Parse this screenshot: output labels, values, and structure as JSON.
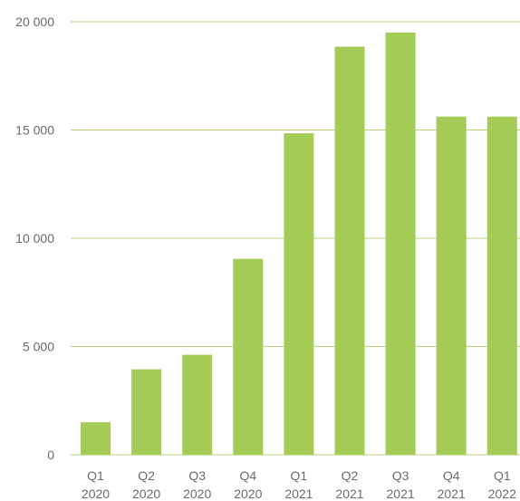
{
  "chart_data": {
    "type": "bar",
    "categories": [
      [
        "Q1",
        "2020"
      ],
      [
        "Q2",
        "2020"
      ],
      [
        "Q3",
        "2020"
      ],
      [
        "Q4",
        "2020"
      ],
      [
        "Q1",
        "2021"
      ],
      [
        "Q2",
        "2021"
      ],
      [
        "Q3",
        "2021"
      ],
      [
        "Q4",
        "2021"
      ],
      [
        "Q1",
        "2022"
      ]
    ],
    "values": [
      1500,
      3950,
      4620,
      9050,
      14850,
      18850,
      19500,
      15620,
      15620
    ],
    "title": "",
    "xlabel": "",
    "ylabel": "",
    "ylim": [
      0,
      20000
    ],
    "yticks": [
      0,
      5000,
      10000,
      15000,
      20000
    ],
    "ytick_labels": [
      "0",
      "5 000",
      "10 000",
      "15 000",
      "20 000"
    ],
    "grid": true,
    "legend": "none",
    "colors": {
      "bar": "#a4cb55",
      "grid": "#b7d47b",
      "text": "#6b6b6b"
    }
  }
}
